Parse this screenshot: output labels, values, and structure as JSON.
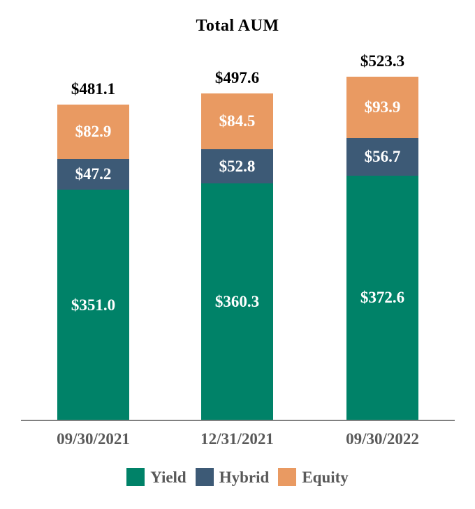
{
  "chart_data": {
    "type": "bar",
    "stacked": true,
    "title": "Total AUM",
    "value_prefix": "$",
    "categories": [
      "09/30/2021",
      "12/31/2021",
      "09/30/2022"
    ],
    "series": [
      {
        "name": "Yield",
        "color": "#008268",
        "values": [
          351.0,
          360.3,
          372.6
        ]
      },
      {
        "name": "Hybrid",
        "color": "#3D5A76",
        "values": [
          47.2,
          52.8,
          56.7
        ]
      },
      {
        "name": "Equity",
        "color": "#E99A62",
        "values": [
          82.9,
          84.5,
          93.9
        ]
      }
    ],
    "segment_labels": [
      [
        "$351.0",
        "$47.2",
        "$82.9"
      ],
      [
        "$360.3",
        "$52.8",
        "$84.5"
      ],
      [
        "$372.6",
        "$56.7",
        "$93.9"
      ]
    ],
    "totals": [
      481.1,
      497.6,
      523.3
    ],
    "totals_formatted": [
      "$481.1",
      "$497.6",
      "$523.3"
    ],
    "legend": {
      "position": "bottom",
      "labels": [
        "Yield",
        "Hybrid",
        "Equity"
      ]
    },
    "colors": {
      "background": "#FFFFFF",
      "title_text": "#000000",
      "total_label_text": "#000000",
      "segment_label_text": "#FFFFFF",
      "axis_line": "#808080",
      "axis_label_text": "#595959",
      "legend_text": "#595959"
    }
  }
}
